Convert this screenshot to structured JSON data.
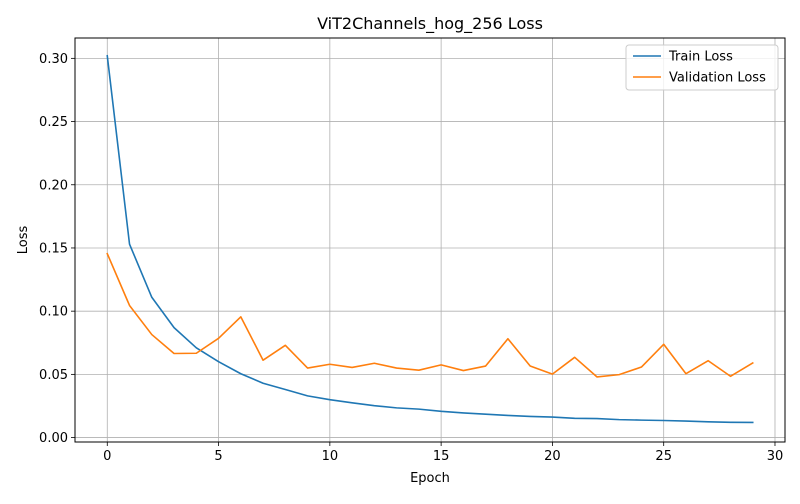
{
  "chart_data": {
    "type": "line",
    "title": "ViT2Channels_hog_256 Loss",
    "xlabel": "Epoch",
    "ylabel": "Loss",
    "xlim": [
      -1.45,
      30.45
    ],
    "ylim": [
      -0.0035,
      0.3161
    ],
    "xticks": [
      0,
      5,
      10,
      15,
      20,
      25,
      30
    ],
    "yticks": [
      0.0,
      0.05,
      0.1,
      0.15,
      0.2,
      0.25,
      0.3
    ],
    "ytick_labels": [
      "0.00",
      "0.05",
      "0.10",
      "0.15",
      "0.20",
      "0.25",
      "0.30"
    ],
    "grid": true,
    "legend_position": "top-right",
    "x": [
      0,
      1,
      2,
      3,
      4,
      5,
      6,
      7,
      8,
      9,
      10,
      11,
      12,
      13,
      14,
      15,
      16,
      17,
      18,
      19,
      20,
      21,
      22,
      23,
      24,
      25,
      26,
      27,
      28,
      29
    ],
    "series": [
      {
        "name": "Train Loss",
        "color": "#1f77b4",
        "values": [
          0.302,
          0.153,
          0.111,
          0.087,
          0.071,
          0.06,
          0.0505,
          0.043,
          0.038,
          0.033,
          0.03,
          0.0275,
          0.0252,
          0.0235,
          0.0225,
          0.0208,
          0.0195,
          0.0185,
          0.0175,
          0.0167,
          0.0162,
          0.0152,
          0.015,
          0.0142,
          0.0138,
          0.0135,
          0.0131,
          0.0125,
          0.0121,
          0.012
        ]
      },
      {
        "name": "Validation Loss",
        "color": "#ff7f0e",
        "values": [
          0.1455,
          0.1045,
          0.0815,
          0.0665,
          0.0667,
          0.0785,
          0.0955,
          0.0612,
          0.073,
          0.055,
          0.058,
          0.0555,
          0.0588,
          0.055,
          0.0533,
          0.0575,
          0.053,
          0.0566,
          0.0782,
          0.0566,
          0.0502,
          0.0635,
          0.048,
          0.0498,
          0.0558,
          0.0738,
          0.0505,
          0.0608,
          0.0485,
          0.059
        ]
      }
    ]
  }
}
